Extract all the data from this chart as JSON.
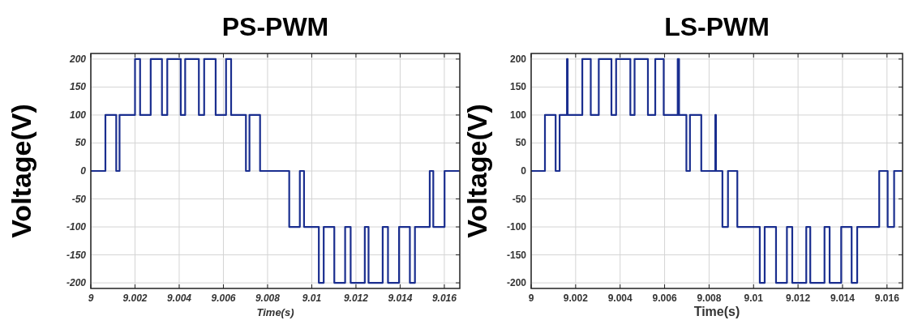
{
  "chart_data": [
    {
      "type": "step",
      "title": "PS-PWM",
      "xlabel": "Time(s)",
      "ylabel": "Voltage(V)",
      "color": "#1a2e8f",
      "x": [
        9,
        9.00066,
        9.00115,
        9.0013,
        9.002,
        9.00223,
        9.00271,
        9.00322,
        9.00346,
        9.00407,
        9.00427,
        9.00489,
        9.00513,
        9.00565,
        9.00612,
        9.00635,
        9.00702,
        9.00718,
        9.00766,
        9.00898,
        9.00946,
        9.00965,
        9.01032,
        9.01054,
        9.01102,
        9.01151,
        9.01176,
        9.0124,
        9.01257,
        9.01321,
        9.01345,
        9.01395,
        9.01444,
        9.01467,
        9.01534,
        9.0155,
        9.01601,
        9.01666
      ],
      "values": [
        0,
        100,
        0,
        100,
        200,
        100,
        200,
        100,
        200,
        100,
        200,
        100,
        200,
        100,
        200,
        100,
        0,
        100,
        0,
        -100,
        0,
        -100,
        -200,
        -100,
        -200,
        -100,
        -200,
        -100,
        -200,
        -100,
        -200,
        -100,
        -200,
        -100,
        0,
        -100,
        0,
        0
      ],
      "xlim": [
        9,
        9.0167
      ],
      "ylim": [
        -210,
        210
      ],
      "xticks": [
        9,
        9.002,
        9.004,
        9.006,
        9.008,
        9.01,
        9.012,
        9.014,
        9.016
      ],
      "yticks": [
        -200,
        -150,
        -100,
        -50,
        0,
        50,
        100,
        150,
        200
      ],
      "grid": true
    },
    {
      "type": "step",
      "title": "LS-PWM",
      "xlabel": "Time(s)",
      "ylabel": "Voltage(V)",
      "color": "#1a2e8f",
      "x": [
        9,
        9.00062,
        9.0011,
        9.00128,
        9.00161,
        9.00164,
        9.0023,
        9.00268,
        9.00304,
        9.00361,
        9.00382,
        9.00446,
        9.00465,
        9.00525,
        9.00558,
        9.00596,
        9.00659,
        9.00665,
        9.00698,
        9.00714,
        9.00765,
        9.00828,
        9.00831,
        9.0086,
        9.00885,
        9.00927,
        9.01028,
        9.0105,
        9.01101,
        9.0115,
        9.01174,
        9.01237,
        9.01255,
        9.01319,
        9.01342,
        9.01394,
        9.01441,
        9.01466,
        9.01565,
        9.01603,
        9.01632,
        9.01667
      ],
      "values": [
        0,
        100,
        0,
        100,
        200,
        100,
        200,
        100,
        200,
        100,
        200,
        100,
        200,
        100,
        200,
        100,
        200,
        100,
        0,
        100,
        0,
        100,
        0,
        -100,
        0,
        -100,
        -200,
        -100,
        -200,
        -100,
        -200,
        -100,
        -200,
        -100,
        -200,
        -100,
        -200,
        -100,
        0,
        -100,
        0,
        0
      ],
      "xlim": [
        9,
        9.0167
      ],
      "ylim": [
        -210,
        210
      ],
      "xticks": [
        9,
        9.002,
        9.004,
        9.006,
        9.008,
        9.01,
        9.012,
        9.014,
        9.016
      ],
      "yticks": [
        -200,
        -150,
        -100,
        -50,
        0,
        50,
        100,
        150,
        200
      ],
      "grid": true
    }
  ]
}
